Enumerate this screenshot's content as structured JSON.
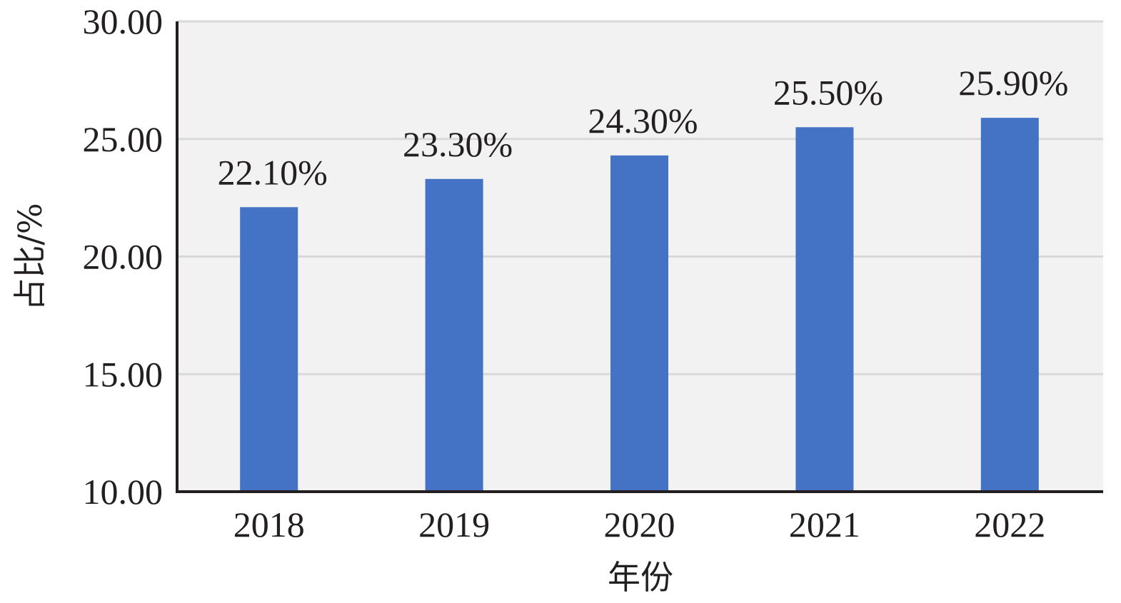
{
  "chart_data": {
    "type": "bar",
    "categories": [
      "2018",
      "2019",
      "2020",
      "2021",
      "2022"
    ],
    "values": [
      22.1,
      23.3,
      24.3,
      25.5,
      25.9
    ],
    "data_labels": [
      "22.10%",
      "23.30%",
      "24.30%",
      "25.50%",
      "25.90%"
    ],
    "title": "",
    "xlabel": "年份",
    "ylabel": "占比/%",
    "ylim": [
      10,
      30
    ],
    "yticks": [
      10,
      15,
      20,
      25,
      30
    ],
    "ytick_labels": [
      "10.00",
      "15.00",
      "20.00",
      "25.00",
      "30.00"
    ],
    "grid": true,
    "legend": "none",
    "colors": {
      "bar": "#4472c4",
      "plot_background": "#f2f2f2",
      "grid": "#d9d9d9",
      "axis": "#231f20",
      "text": "#231f20"
    }
  }
}
